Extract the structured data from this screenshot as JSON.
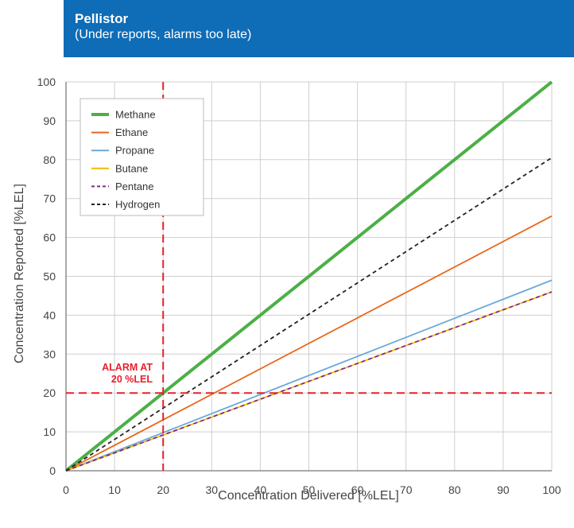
{
  "header": {
    "title": "Pellistor",
    "subtitle": "(Under reports, alarms too late)",
    "color": "#0f6cb6"
  },
  "chart_data": {
    "type": "line",
    "xlabel": "Concentration Delivered [%LEL]",
    "ylabel": "Concentration Reported [%LEL]",
    "xlim": [
      0,
      100
    ],
    "ylim": [
      0,
      100
    ],
    "xticks": [
      "0",
      "10",
      "20",
      "30",
      "40",
      "50",
      "60",
      "70",
      "80",
      "90",
      "100"
    ],
    "yticks": [
      "0",
      "10",
      "20",
      "30",
      "40",
      "50",
      "60",
      "70",
      "80",
      "90",
      "100"
    ],
    "grid": true,
    "legend_position": "top-left",
    "series": [
      {
        "name": "Methane",
        "color": "#4caf46",
        "dashed": false,
        "thick": true,
        "x": [
          0,
          100
        ],
        "y": [
          0,
          100
        ]
      },
      {
        "name": "Ethane",
        "color": "#e8671b",
        "dashed": false,
        "thick": false,
        "x": [
          0,
          100
        ],
        "y": [
          0,
          65.5
        ]
      },
      {
        "name": "Propane",
        "color": "#6aa9dc",
        "dashed": false,
        "thick": false,
        "x": [
          0,
          100
        ],
        "y": [
          0,
          49
        ]
      },
      {
        "name": "Butane",
        "color": "#f5b800",
        "dashed": false,
        "thick": false,
        "x": [
          0,
          100
        ],
        "y": [
          0,
          46
        ]
      },
      {
        "name": "Pentane",
        "color": "#7b2c8a",
        "dashed": true,
        "thick": false,
        "x": [
          0,
          100
        ],
        "y": [
          0,
          46
        ]
      },
      {
        "name": "Hydrogen",
        "color": "#222222",
        "dashed": true,
        "thick": false,
        "x": [
          0,
          100
        ],
        "y": [
          0,
          80.5
        ]
      }
    ],
    "alarm": {
      "label_line1": "ALARM AT",
      "label_line2": "20 %LEL",
      "x": 20,
      "y": 20,
      "color": "#e8202a"
    }
  }
}
